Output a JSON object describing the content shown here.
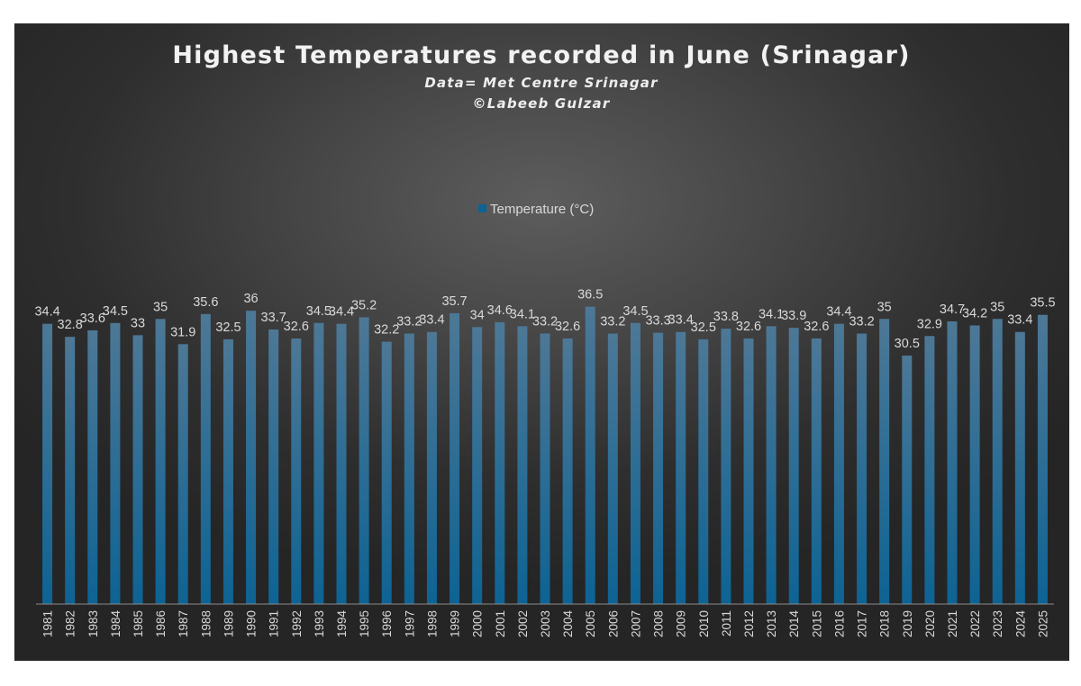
{
  "colors": {
    "bar_top": "#4d7896",
    "bar_bottom": "#0d6394",
    "axis": "#8c8c8c",
    "text": "#d9d9d9"
  },
  "chart_data": {
    "type": "bar",
    "title": "Highest Temperatures recorded in June (Srinagar)",
    "subtitle_lines": [
      "Data= Met Centre Srinagar",
      "©Labeeb Gulzar"
    ],
    "xlabel": "",
    "ylabel": "",
    "ylim": [
      0,
      42
    ],
    "grid": false,
    "legend_position": "top-center",
    "categories": [
      "1981",
      "1982",
      "1983",
      "1984",
      "1985",
      "1986",
      "1987",
      "1988",
      "1989",
      "1990",
      "1991",
      "1992",
      "1993",
      "1994",
      "1995",
      "1996",
      "1997",
      "1998",
      "1999",
      "2000",
      "2001",
      "2002",
      "2003",
      "2004",
      "2005",
      "2006",
      "2007",
      "2008",
      "2009",
      "2010",
      "2011",
      "2012",
      "2013",
      "2014",
      "2015",
      "2016",
      "2017",
      "2018",
      "2019",
      "2020",
      "2021",
      "2022",
      "2023",
      "2024",
      "2025"
    ],
    "series": [
      {
        "name": "Temperature (°C)",
        "values": [
          34.4,
          32.8,
          33.6,
          34.5,
          33,
          35,
          31.9,
          35.6,
          32.5,
          36,
          33.7,
          32.6,
          34.5,
          34.4,
          35.2,
          32.2,
          33.2,
          33.4,
          35.7,
          34,
          34.6,
          34.1,
          33.2,
          32.6,
          36.5,
          33.2,
          34.5,
          33.3,
          33.4,
          32.5,
          33.8,
          32.6,
          34.1,
          33.9,
          32.6,
          34.4,
          33.2,
          35,
          30.5,
          32.9,
          34.7,
          34.2,
          35,
          33.4,
          35.5
        ]
      }
    ]
  }
}
